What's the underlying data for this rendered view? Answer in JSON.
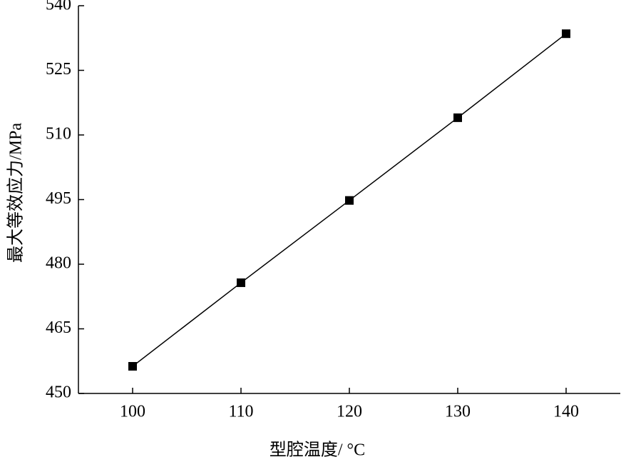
{
  "chart_data": {
    "type": "line",
    "x_label": "型腔温度/ °C",
    "y_label": "最大等效应力/MPa",
    "x": [
      100,
      110,
      120,
      130,
      140
    ],
    "series": [
      {
        "values": [
          456.3,
          475.7,
          494.8,
          514.0,
          533.5
        ],
        "color": "#000000",
        "marker": "square"
      }
    ],
    "xlim": [
      95,
      145
    ],
    "xticks": [
      100,
      110,
      120,
      130,
      140
    ],
    "ylim": [
      450,
      540
    ],
    "yticks": [
      450,
      465,
      480,
      495,
      510,
      525,
      540
    ],
    "grid": false
  }
}
